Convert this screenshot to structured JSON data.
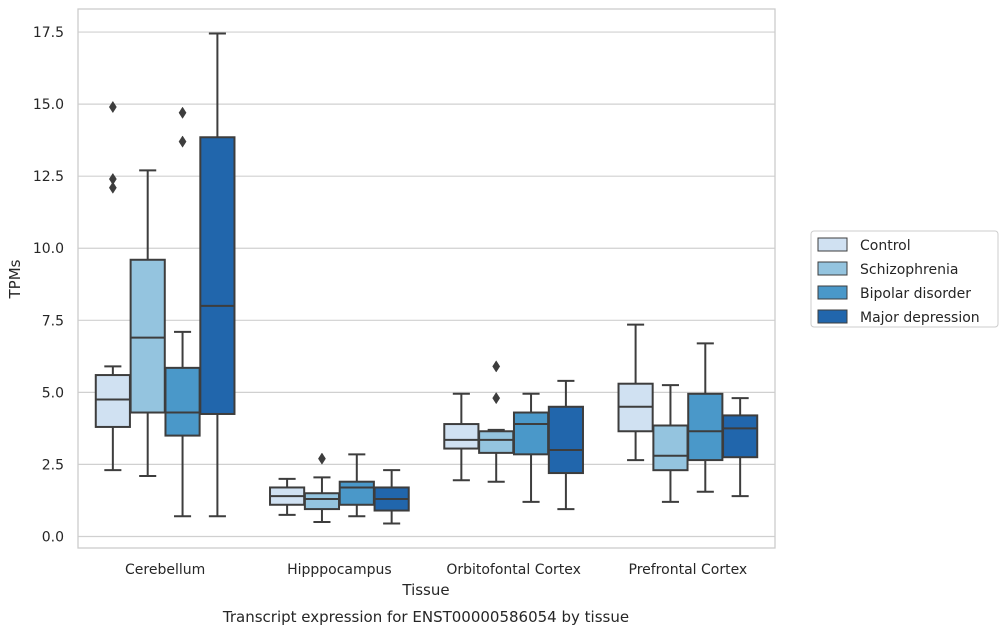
{
  "chart_data": {
    "type": "box",
    "xlabel": "Tissue",
    "ylabel": "TPMs",
    "caption": "Transcript expression for ENST00000586054 by tissue",
    "ylim": [
      -0.4,
      18.3
    ],
    "yticks": [
      0.0,
      2.5,
      5.0,
      7.5,
      10.0,
      12.5,
      15.0,
      17.5
    ],
    "ytick_labels": [
      "0.0",
      "2.5",
      "5.0",
      "7.5",
      "10.0",
      "12.5",
      "15.0",
      "17.5"
    ],
    "grid": "horizontal",
    "legend_position": "right",
    "categories": [
      "Cerebellum",
      "Hipppocampus",
      "Orbitofontal Cortex",
      "Prefrontal Cortex"
    ],
    "series": [
      {
        "name": "Control",
        "color": "#d0e1f2",
        "boxes": [
          {
            "whisker_low": 2.3,
            "q1": 3.8,
            "median": 4.75,
            "q3": 5.6,
            "whisker_high": 5.9,
            "outliers": [
              12.1,
              12.4,
              14.9
            ]
          },
          {
            "whisker_low": 0.75,
            "q1": 1.1,
            "median": 1.4,
            "q3": 1.7,
            "whisker_high": 2.0,
            "outliers": []
          },
          {
            "whisker_low": 1.95,
            "q1": 3.05,
            "median": 3.35,
            "q3": 3.9,
            "whisker_high": 4.95,
            "outliers": []
          },
          {
            "whisker_low": 2.65,
            "q1": 3.65,
            "median": 4.5,
            "q3": 5.3,
            "whisker_high": 7.35,
            "outliers": []
          }
        ]
      },
      {
        "name": "Schizophrenia",
        "color": "#94c4df",
        "boxes": [
          {
            "whisker_low": 2.1,
            "q1": 4.3,
            "median": 6.9,
            "q3": 9.6,
            "whisker_high": 12.7,
            "outliers": []
          },
          {
            "whisker_low": 0.5,
            "q1": 0.95,
            "median": 1.3,
            "q3": 1.5,
            "whisker_high": 2.05,
            "outliers": [
              2.7
            ]
          },
          {
            "whisker_low": 1.9,
            "q1": 2.9,
            "median": 3.35,
            "q3": 3.65,
            "whisker_high": 3.7,
            "outliers": [
              4.8,
              5.9
            ]
          },
          {
            "whisker_low": 1.2,
            "q1": 2.3,
            "median": 2.8,
            "q3": 3.85,
            "whisker_high": 5.25,
            "outliers": []
          }
        ]
      },
      {
        "name": "Bipolar disorder",
        "color": "#4a98c9",
        "boxes": [
          {
            "whisker_low": 0.7,
            "q1": 3.5,
            "median": 4.3,
            "q3": 5.85,
            "whisker_high": 7.1,
            "outliers": [
              13.7,
              14.7
            ]
          },
          {
            "whisker_low": 0.7,
            "q1": 1.1,
            "median": 1.7,
            "q3": 1.9,
            "whisker_high": 2.85,
            "outliers": []
          },
          {
            "whisker_low": 1.2,
            "q1": 2.85,
            "median": 3.9,
            "q3": 4.3,
            "whisker_high": 4.95,
            "outliers": []
          },
          {
            "whisker_low": 1.55,
            "q1": 2.65,
            "median": 3.65,
            "q3": 4.95,
            "whisker_high": 6.7,
            "outliers": []
          }
        ]
      },
      {
        "name": "Major depression",
        "color": "#2166ac",
        "boxes": [
          {
            "whisker_low": 0.7,
            "q1": 4.25,
            "median": 8.0,
            "q3": 13.85,
            "whisker_high": 17.45,
            "outliers": []
          },
          {
            "whisker_low": 0.45,
            "q1": 0.9,
            "median": 1.3,
            "q3": 1.7,
            "whisker_high": 2.3,
            "outliers": []
          },
          {
            "whisker_low": 0.95,
            "q1": 2.2,
            "median": 3.0,
            "q3": 4.5,
            "whisker_high": 5.4,
            "outliers": []
          },
          {
            "whisker_low": 1.4,
            "q1": 2.75,
            "median": 3.75,
            "q3": 4.2,
            "whisker_high": 4.8,
            "outliers": []
          }
        ]
      }
    ]
  }
}
